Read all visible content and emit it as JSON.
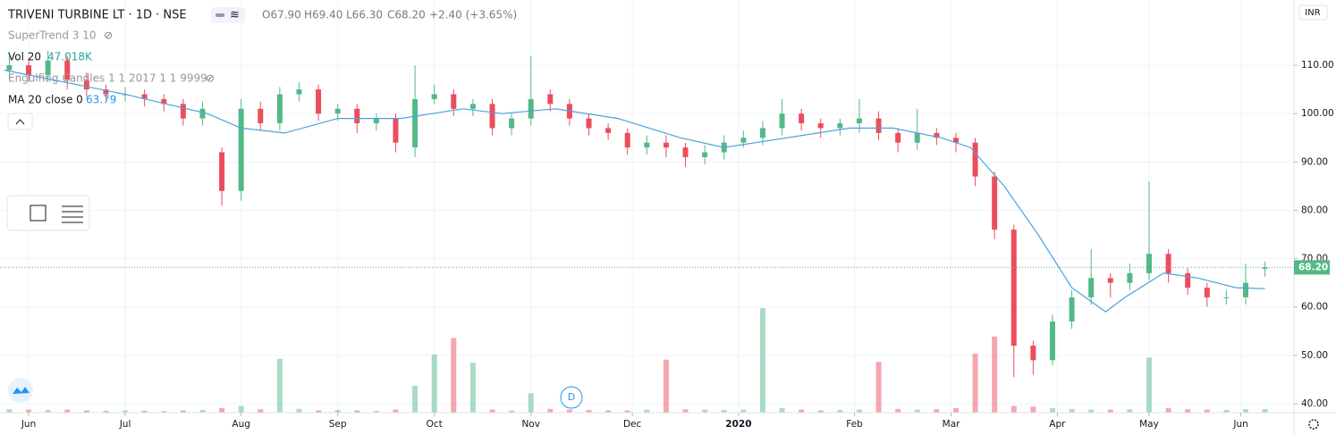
{
  "chart_data": {
    "type": "candlestick",
    "title": "TRIVENI TURBINE LT · 1D · NSE",
    "ohlc_labels": {
      "open": "O67.90",
      "high": "H69.40",
      "low": "L66.30",
      "close": "C68.20",
      "change": "+2.40 (+3.65%)"
    },
    "indicators": {
      "supertrend": "SuperTrend 3 10",
      "volume": "Vol 20",
      "volume_label": "47.018K",
      "engulfing": "Engulfing Candles 1 1 2017 1 1 9999"
    },
    "currency": "INR",
    "marker": "D",
    "x": [
      1,
      5,
      9,
      13,
      17,
      21,
      25,
      29,
      33,
      37,
      41,
      45,
      49,
      53,
      57,
      61,
      65,
      69,
      73,
      77,
      81,
      85,
      89,
      93,
      97,
      101,
      105,
      109,
      113,
      117,
      121,
      125,
      129,
      133,
      137,
      141,
      145,
      149,
      153,
      157,
      161,
      165,
      169,
      173,
      177,
      181,
      185,
      189,
      193,
      197,
      201,
      205,
      209,
      213,
      217,
      221,
      225,
      229,
      233,
      237,
      241,
      245,
      249,
      253,
      257,
      261
    ],
    "open": [
      109,
      110,
      108,
      111,
      107,
      105,
      104,
      104,
      103,
      102,
      99,
      92,
      84,
      101,
      98,
      104,
      105,
      100,
      101,
      98,
      99,
      93,
      103,
      104,
      101,
      102,
      97,
      99,
      104,
      102,
      99,
      97,
      96,
      93,
      94,
      93,
      91,
      92,
      94,
      95,
      97,
      100,
      98,
      97,
      98,
      99,
      96,
      94,
      96,
      95,
      94,
      87,
      76,
      52,
      49,
      57,
      62,
      66,
      65,
      67,
      71,
      67,
      64,
      62,
      62,
      67.9
    ],
    "high": [
      112,
      111.5,
      113,
      112,
      108.5,
      106,
      105.5,
      105,
      104,
      103,
      102.5,
      93,
      103,
      102.5,
      105.5,
      106.5,
      106,
      102,
      102,
      100,
      100,
      110,
      106,
      105,
      103,
      103,
      100,
      112,
      105,
      103,
      100,
      98,
      97,
      95.5,
      95.5,
      94,
      93.5,
      95.5,
      96.5,
      98.5,
      103,
      101,
      99,
      99,
      103,
      100.5,
      97,
      101,
      97,
      96,
      95,
      88,
      77,
      53,
      58.5,
      63.5,
      72,
      67,
      69,
      86,
      72,
      68,
      65,
      63.5,
      69,
      69.4
    ],
    "low": [
      107,
      106.5,
      106.5,
      105,
      103.5,
      103,
      102.5,
      101.5,
      100.5,
      97.5,
      97.5,
      81,
      82,
      96.5,
      96.5,
      102.5,
      98.5,
      98.5,
      96,
      96.5,
      92,
      91,
      102,
      99.5,
      99.5,
      95.5,
      95.5,
      97.5,
      100.5,
      97.5,
      95.5,
      94.5,
      91.5,
      91.5,
      91,
      89,
      89.5,
      90.5,
      93,
      93.5,
      95.5,
      96.5,
      95,
      95.5,
      96,
      94.5,
      92,
      92.5,
      93.5,
      92,
      85,
      74,
      45.5,
      46,
      48,
      55.5,
      60.5,
      62,
      63.5,
      65.5,
      65,
      62.5,
      60,
      60.5,
      60.5,
      66.3
    ],
    "close": [
      110,
      108,
      111,
      107,
      105,
      104,
      104,
      103,
      102,
      99,
      101,
      84,
      101,
      98,
      104,
      105,
      100,
      101,
      98,
      99,
      94,
      103,
      104,
      101,
      102,
      97,
      99,
      103,
      102,
      99,
      97,
      96,
      93,
      94,
      93,
      91,
      92,
      94,
      95,
      97,
      100,
      98,
      97,
      98,
      99,
      96,
      94,
      96,
      95,
      94,
      87,
      76,
      52,
      49,
      57,
      62,
      66,
      65,
      67,
      71,
      67,
      64,
      62,
      62,
      65,
      68.2
    ],
    "close_label": "68.20",
    "volume": [
      45,
      40,
      35,
      40,
      30,
      25,
      30,
      25,
      20,
      30,
      35,
      60,
      90,
      45,
      720,
      50,
      30,
      35,
      30,
      25,
      40,
      360,
      780,
      1000,
      670,
      40,
      30,
      260,
      50,
      40,
      35,
      30,
      30,
      40,
      710,
      45,
      40,
      35,
      40,
      1400,
      60,
      40,
      30,
      35,
      40,
      680,
      50,
      40,
      45,
      60,
      790,
      1020,
      90,
      80,
      60,
      50,
      40,
      40,
      45,
      740,
      60,
      45,
      40,
      35,
      45,
      47.018
    ],
    "up_color": "#53b987",
    "down_color": "#eb4d5c",
    "ma": {
      "name": "MA 20 close 0",
      "color": "#4aa3df",
      "x": [
        0,
        25,
        42,
        49,
        58,
        69,
        82,
        95,
        103,
        114,
        127,
        140,
        149,
        162,
        175,
        184,
        194,
        200,
        207,
        214,
        221,
        228,
        232,
        240,
        247,
        255,
        261
      ],
      "values": [
        109,
        104,
        100,
        97,
        96,
        99,
        99,
        101,
        100,
        101,
        99,
        95,
        93,
        95,
        97,
        97,
        95,
        93,
        85,
        75,
        64,
        59,
        62,
        67,
        66,
        64,
        63.79
      ]
    },
    "xlim": [
      -0.93,
      267
    ],
    "xticks": [
      {
        "value": 5,
        "label": "Jun"
      },
      {
        "value": 25,
        "label": "Jul"
      },
      {
        "value": 49,
        "label": "Aug"
      },
      {
        "value": 69,
        "label": "Sep"
      },
      {
        "value": 89,
        "label": "Oct"
      },
      {
        "value": 109,
        "label": "Nov"
      },
      {
        "value": 130,
        "label": "Dec"
      },
      {
        "value": 152,
        "label": "2020"
      },
      {
        "value": 176,
        "label": "Feb"
      },
      {
        "value": 196,
        "label": "Mar"
      },
      {
        "value": 218,
        "label": "Apr"
      },
      {
        "value": 237,
        "label": "May"
      },
      {
        "value": 256,
        "label": "Jun"
      }
    ],
    "ylim": [
      38.15,
      123.5
    ],
    "yticks": [
      {
        "value": 40,
        "label": "40.00"
      },
      {
        "value": 50,
        "label": "50.00"
      },
      {
        "value": 60,
        "label": "60.00"
      },
      {
        "value": 70,
        "label": "70.00"
      },
      {
        "value": 80,
        "label": "80.00"
      },
      {
        "value": 90,
        "label": "90.00"
      },
      {
        "value": 100,
        "label": "100.00"
      },
      {
        "value": 110,
        "label": "110.00"
      }
    ],
    "grid": true
  }
}
